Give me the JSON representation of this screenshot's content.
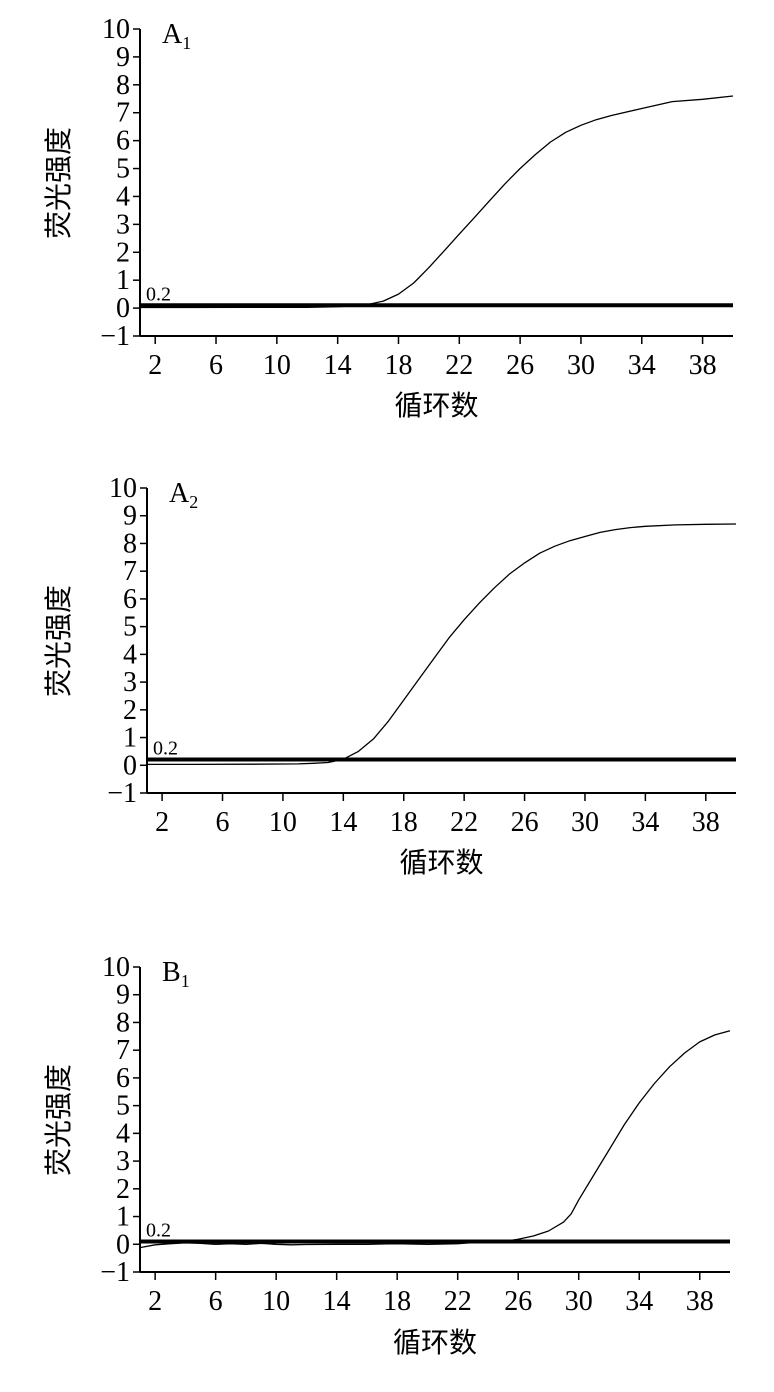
{
  "chart_data": [
    {
      "type": "line",
      "title": "",
      "panel_label_main": "A",
      "panel_label_sub": "1",
      "xlabel": "循环数",
      "ylabel": "荧光强度",
      "xlim": [
        1,
        40
      ],
      "ylim": [
        -1,
        10
      ],
      "xticks": [
        2,
        6,
        10,
        14,
        18,
        22,
        26,
        30,
        34,
        38
      ],
      "yticks": [
        -1,
        0,
        1,
        2,
        3,
        4,
        5,
        6,
        7,
        8,
        9,
        10
      ],
      "ytick_labels": [
        "−1",
        "0",
        "1",
        "2",
        "3",
        "4",
        "5",
        "6",
        "7",
        "8",
        "9",
        "10"
      ],
      "threshold": {
        "value": 0.2,
        "label": "0.2"
      },
      "series": [
        {
          "x": [
            1,
            4,
            8,
            12,
            14,
            15,
            16,
            17,
            18,
            19,
            20,
            21,
            22,
            23,
            24,
            25,
            26,
            27,
            28,
            29,
            30,
            31,
            32,
            34,
            36,
            38,
            40
          ],
          "values": [
            0.02,
            0.02,
            0.03,
            0.03,
            0.05,
            0.08,
            0.13,
            0.25,
            0.5,
            0.9,
            1.45,
            2.05,
            2.65,
            3.25,
            3.85,
            4.45,
            5.0,
            5.5,
            5.95,
            6.3,
            6.55,
            6.75,
            6.9,
            7.15,
            7.4,
            7.48,
            7.6
          ]
        }
      ]
    },
    {
      "type": "line",
      "title": "",
      "panel_label_main": "A",
      "panel_label_sub": "2",
      "xlabel": "循环数",
      "ylabel": "荧光强度",
      "xlim": [
        1,
        40
      ],
      "ylim": [
        -1,
        10
      ],
      "xticks": [
        2,
        6,
        10,
        14,
        18,
        22,
        26,
        30,
        34,
        38
      ],
      "yticks": [
        -1,
        0,
        1,
        2,
        3,
        4,
        5,
        6,
        7,
        8,
        9,
        10
      ],
      "ytick_labels": [
        "−1",
        "0",
        "1",
        "2",
        "3",
        "4",
        "5",
        "6",
        "7",
        "8",
        "9",
        "10"
      ],
      "threshold": {
        "value": 0.2,
        "label": "0.2"
      },
      "series": [
        {
          "x": [
            1,
            4,
            8,
            11,
            12,
            13,
            14,
            15,
            16,
            17,
            18,
            19,
            20,
            21,
            22,
            23,
            24,
            25,
            26,
            27,
            28,
            29,
            30,
            31,
            32,
            33,
            34,
            36,
            38,
            40
          ],
          "values": [
            0.03,
            0.03,
            0.04,
            0.05,
            0.07,
            0.1,
            0.22,
            0.5,
            0.95,
            1.6,
            2.35,
            3.1,
            3.85,
            4.6,
            5.25,
            5.85,
            6.4,
            6.9,
            7.3,
            7.65,
            7.9,
            8.1,
            8.25,
            8.4,
            8.5,
            8.57,
            8.62,
            8.67,
            8.69,
            8.7
          ]
        }
      ]
    },
    {
      "type": "line",
      "title": "",
      "panel_label_main": "B",
      "panel_label_sub": "1",
      "xlabel": "循环数",
      "ylabel": "荧光强度",
      "xlim": [
        1,
        40
      ],
      "ylim": [
        -1,
        10
      ],
      "xticks": [
        2,
        6,
        10,
        14,
        18,
        22,
        26,
        30,
        34,
        38
      ],
      "yticks": [
        -1,
        0,
        1,
        2,
        3,
        4,
        5,
        6,
        7,
        8,
        9,
        10
      ],
      "ytick_labels": [
        "−1",
        "0",
        "1",
        "2",
        "3",
        "4",
        "5",
        "6",
        "7",
        "8",
        "9",
        "10"
      ],
      "threshold": {
        "value": 0.2,
        "label": "0.2"
      },
      "series": [
        {
          "x": [
            1,
            2,
            3,
            4,
            5,
            6,
            7,
            8,
            9,
            10,
            11,
            12,
            14,
            16,
            18,
            20,
            22,
            23,
            24,
            25,
            26,
            27,
            28,
            29,
            29.5,
            30,
            31,
            32,
            33,
            34,
            35,
            36,
            37,
            38,
            39,
            40
          ],
          "values": [
            -0.12,
            -0.02,
            0.02,
            0.05,
            0.03,
            0.0,
            0.02,
            0.0,
            0.03,
            0.0,
            -0.02,
            -0.01,
            0.0,
            0.0,
            0.02,
            0.0,
            0.02,
            0.06,
            0.05,
            0.1,
            0.18,
            0.3,
            0.48,
            0.8,
            1.1,
            1.6,
            2.5,
            3.4,
            4.3,
            5.1,
            5.8,
            6.4,
            6.9,
            7.3,
            7.55,
            7.7
          ]
        }
      ]
    }
  ]
}
